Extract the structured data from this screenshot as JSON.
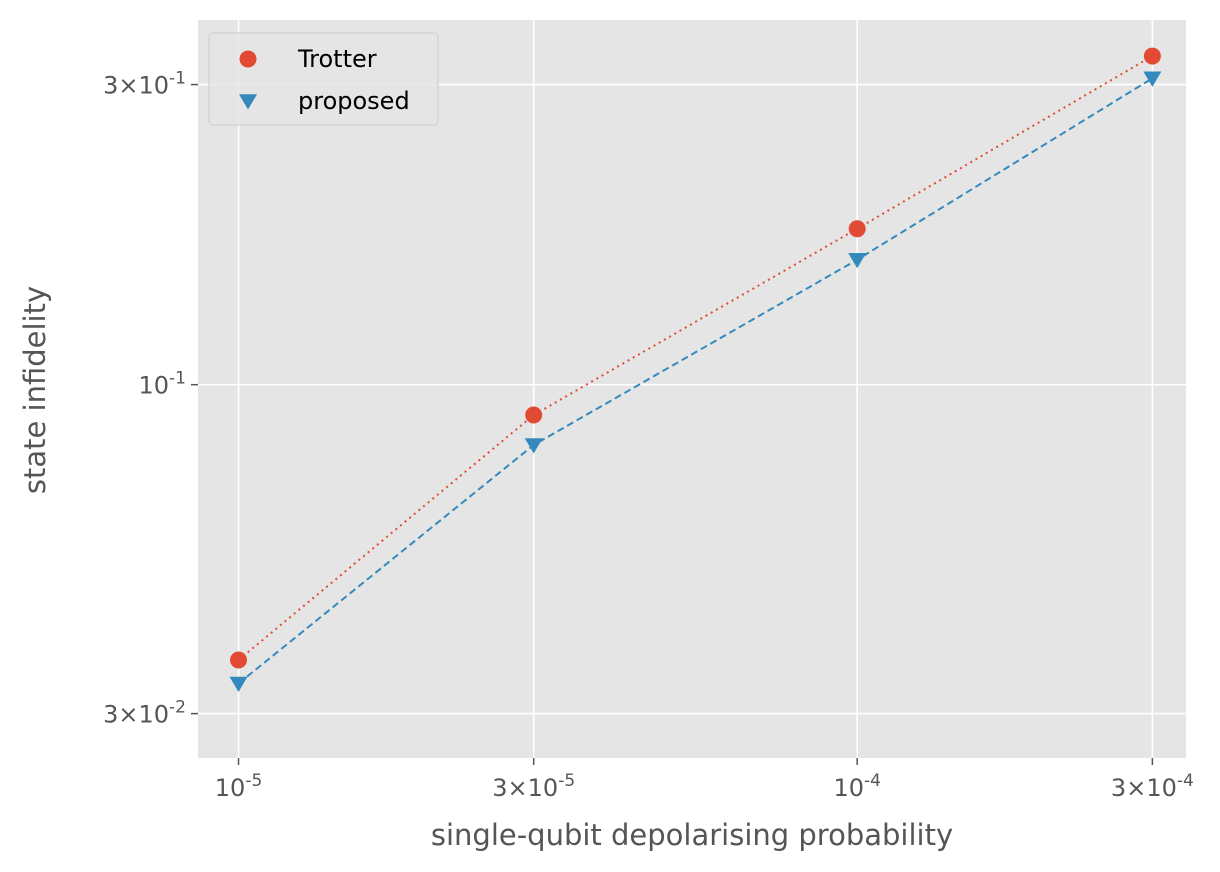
{
  "chart_data": {
    "type": "scatter",
    "xlabel": "single-qubit depolarising probability",
    "ylabel": "state infidelity",
    "xscale": "log",
    "yscale": "log",
    "xlim": [
      8.6e-06,
      0.00034
    ],
    "ylim": [
      0.0255,
      0.38
    ],
    "grid": true,
    "legend_position": "top-left",
    "x_ticks": [
      {
        "value": 1e-05,
        "label": "10^{-5}"
      },
      {
        "value": 3e-05,
        "label": "3×10^{-5}"
      },
      {
        "value": 0.0001,
        "label": "10^{-4}"
      },
      {
        "value": 0.0003,
        "label": "3×10^{-4}"
      }
    ],
    "y_ticks": [
      {
        "value": 0.03,
        "label": "3×10^{-2}"
      },
      {
        "value": 0.1,
        "label": "10^{-1}"
      },
      {
        "value": 0.3,
        "label": "3×10^{-1}"
      }
    ],
    "series": [
      {
        "name": "Trotter",
        "color": "#E24A33",
        "marker": "circle",
        "line_style": "dotted",
        "x": [
          1e-05,
          3e-05,
          0.0001,
          0.0003
        ],
        "y": [
          0.0365,
          0.0895,
          0.177,
          0.333
        ]
      },
      {
        "name": "proposed",
        "color": "#348ABD",
        "marker": "triangle-down",
        "line_style": "dashed",
        "x": [
          1e-05,
          3e-05,
          0.0001,
          0.0003
        ],
        "y": [
          0.0335,
          0.0802,
          0.158,
          0.307
        ]
      }
    ]
  }
}
